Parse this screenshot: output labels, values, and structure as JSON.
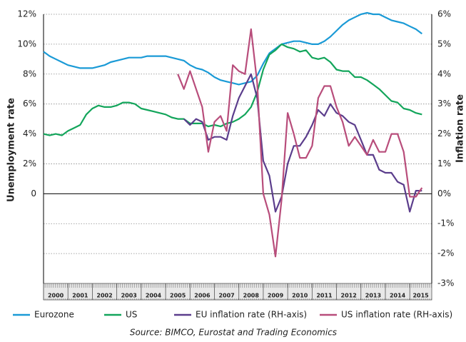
{
  "chart_data": {
    "type": "line",
    "y_label": "Unemployment rate",
    "y2_label": "Inflation rate",
    "source": "Source: BIMCO, Eurostat and Trading Economics",
    "legend": "bottom",
    "grid": true,
    "x": [
      2000,
      2000.25,
      2000.5,
      2000.75,
      2001,
      2001.25,
      2001.5,
      2001.75,
      2002,
      2002.25,
      2002.5,
      2002.75,
      2003,
      2003.25,
      2003.5,
      2003.75,
      2004,
      2004.25,
      2004.5,
      2004.75,
      2005,
      2005.25,
      2005.5,
      2005.75,
      2006,
      2006.25,
      2006.5,
      2006.75,
      2007,
      2007.25,
      2007.5,
      2007.75,
      2008,
      2008.25,
      2008.5,
      2008.75,
      2009,
      2009.25,
      2009.5,
      2009.75,
      2010,
      2010.25,
      2010.5,
      2010.75,
      2011,
      2011.25,
      2011.5,
      2011.75,
      2012,
      2012.25,
      2012.5,
      2012.75,
      2013,
      2013.25,
      2013.5,
      2013.75,
      2014,
      2014.25,
      2014.5,
      2014.75,
      2015,
      2015.25,
      2015.5
    ],
    "xlim": [
      2000,
      2015.9
    ],
    "xticks": [
      2000,
      2001,
      2002,
      2003,
      2004,
      2005,
      2006,
      2007,
      2008,
      2009,
      2010,
      2011,
      2012,
      2013,
      2014,
      2015
    ],
    "ylim": [
      -6,
      12
    ],
    "yticks": [
      0,
      {
        "value": 2,
        "label": "2%"
      },
      {
        "value": 4,
        "label": "4%"
      },
      {
        "value": 6,
        "label": "6%"
      },
      {
        "value": 8,
        "label": "8%"
      },
      {
        "value": 10,
        "label": "10%"
      },
      {
        "value": 12,
        "label": "12%"
      }
    ],
    "y2lim": [
      -3,
      6
    ],
    "y2ticks": [
      {
        "value": -3,
        "label": "-3%"
      },
      {
        "value": -2,
        "label": "-2%"
      },
      {
        "value": -1,
        "label": "-1%"
      },
      {
        "value": 0,
        "label": "0%"
      },
      {
        "value": 1,
        "label": "1%"
      },
      {
        "value": 2,
        "label": "2%"
      },
      {
        "value": 3,
        "label": "3%"
      },
      {
        "value": 4,
        "label": "4%"
      },
      {
        "value": 5,
        "label": "5%"
      },
      {
        "value": 6,
        "label": "6%"
      }
    ],
    "series": [
      {
        "name": "Eurozone",
        "color": "#1a9ad6",
        "values": [
          9.5,
          9.2,
          9.0,
          8.8,
          8.6,
          8.5,
          8.4,
          8.4,
          8.4,
          8.5,
          8.6,
          8.8,
          8.9,
          9.0,
          9.1,
          9.1,
          9.1,
          9.2,
          9.2,
          9.2,
          9.2,
          9.1,
          9.0,
          8.9,
          8.6,
          8.4,
          8.3,
          8.1,
          7.8,
          7.6,
          7.5,
          7.4,
          7.3,
          7.4,
          7.5,
          7.9,
          8.7,
          9.4,
          9.7,
          10.0,
          10.1,
          10.2,
          10.2,
          10.1,
          10.0,
          10.0,
          10.2,
          10.5,
          10.9,
          11.3,
          11.6,
          11.8,
          12.0,
          12.1,
          12.0,
          12.0,
          11.8,
          11.6,
          11.5,
          11.4,
          11.2,
          11.0,
          10.7
        ]
      },
      {
        "name": "US",
        "color": "#13a55b",
        "values": [
          4.0,
          3.9,
          4.0,
          3.9,
          4.2,
          4.4,
          4.6,
          5.3,
          5.7,
          5.9,
          5.8,
          5.8,
          5.9,
          6.1,
          6.1,
          6.0,
          5.7,
          5.6,
          5.5,
          5.4,
          5.3,
          5.1,
          5.0,
          5.0,
          4.7,
          4.7,
          4.7,
          4.5,
          4.6,
          4.5,
          4.7,
          4.8,
          5.0,
          5.3,
          5.8,
          6.8,
          8.3,
          9.3,
          9.6,
          10.0,
          9.8,
          9.7,
          9.5,
          9.6,
          9.1,
          9.0,
          9.1,
          8.8,
          8.3,
          8.2,
          8.2,
          7.8,
          7.8,
          7.6,
          7.3,
          7.0,
          6.6,
          6.2,
          6.1,
          5.7,
          5.6,
          5.4,
          5.3
        ]
      },
      {
        "name": "EU inflation rate (RH-axis)",
        "color": "#5b3d8c",
        "axis": "y2",
        "values": [
          null,
          null,
          null,
          null,
          null,
          null,
          null,
          null,
          null,
          null,
          null,
          null,
          null,
          null,
          null,
          null,
          null,
          null,
          null,
          null,
          null,
          null,
          null,
          2.5,
          2.3,
          2.5,
          2.4,
          1.8,
          1.9,
          1.9,
          1.8,
          2.6,
          3.2,
          3.6,
          4.0,
          3.2,
          1.1,
          0.6,
          -0.6,
          -0.1,
          1.0,
          1.6,
          1.6,
          1.9,
          2.3,
          2.8,
          2.6,
          3.0,
          2.7,
          2.6,
          2.4,
          2.3,
          1.8,
          1.3,
          1.3,
          0.8,
          0.7,
          0.7,
          0.4,
          0.3,
          -0.6,
          0.1,
          0.1
        ]
      },
      {
        "name": "US inflation rate (RH-axis)",
        "color": "#b84d7b",
        "axis": "y2",
        "values": [
          null,
          null,
          null,
          null,
          null,
          null,
          null,
          null,
          null,
          null,
          null,
          null,
          null,
          null,
          null,
          null,
          null,
          null,
          null,
          null,
          null,
          null,
          4.0,
          3.5,
          4.1,
          3.5,
          2.9,
          1.4,
          2.4,
          2.6,
          2.1,
          4.3,
          4.1,
          4.0,
          5.5,
          3.7,
          0.0,
          -0.7,
          -2.1,
          -0.2,
          2.7,
          2.0,
          1.2,
          1.2,
          1.6,
          3.2,
          3.6,
          3.6,
          2.9,
          2.4,
          1.6,
          1.9,
          1.6,
          1.3,
          1.8,
          1.4,
          1.4,
          2.0,
          2.0,
          1.4,
          -0.1,
          -0.1,
          0.2
        ]
      }
    ]
  }
}
